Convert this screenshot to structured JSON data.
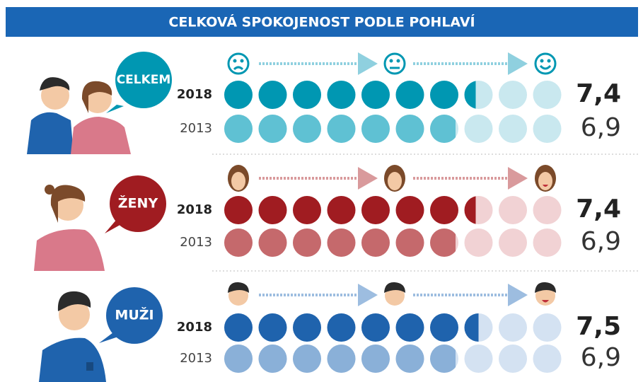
{
  "chart_data": {
    "type": "pictogram",
    "title": "CELKOVÁ SPOKOJENOST PODLE POHLAVÍ",
    "categories": [
      "2018",
      "2013"
    ],
    "xlim": [
      0,
      10
    ],
    "series": [
      {
        "name": "CELKEM",
        "color": "#0097b2",
        "colors": [
          "#0097b2",
          "#5fc1d3"
        ],
        "empty_color": "#c9e8ef",
        "values": [
          7.4,
          6.9
        ],
        "value_labels": [
          "7,4",
          "6,9"
        ]
      },
      {
        "name": "ŽENY",
        "color": "#a01c21",
        "colors": [
          "#a01c21",
          "#c5696c"
        ],
        "empty_color": "#f1d2d4",
        "values": [
          7.4,
          6.9
        ],
        "value_labels": [
          "7,4",
          "6,9"
        ]
      },
      {
        "name": "MUŽI",
        "color": "#1f63ad",
        "colors": [
          "#1f63ad",
          "#8ab0d8"
        ],
        "empty_color": "#d4e2f2",
        "values": [
          7.5,
          6.9
        ],
        "value_labels": [
          "7,5",
          "6,9"
        ]
      }
    ]
  }
}
